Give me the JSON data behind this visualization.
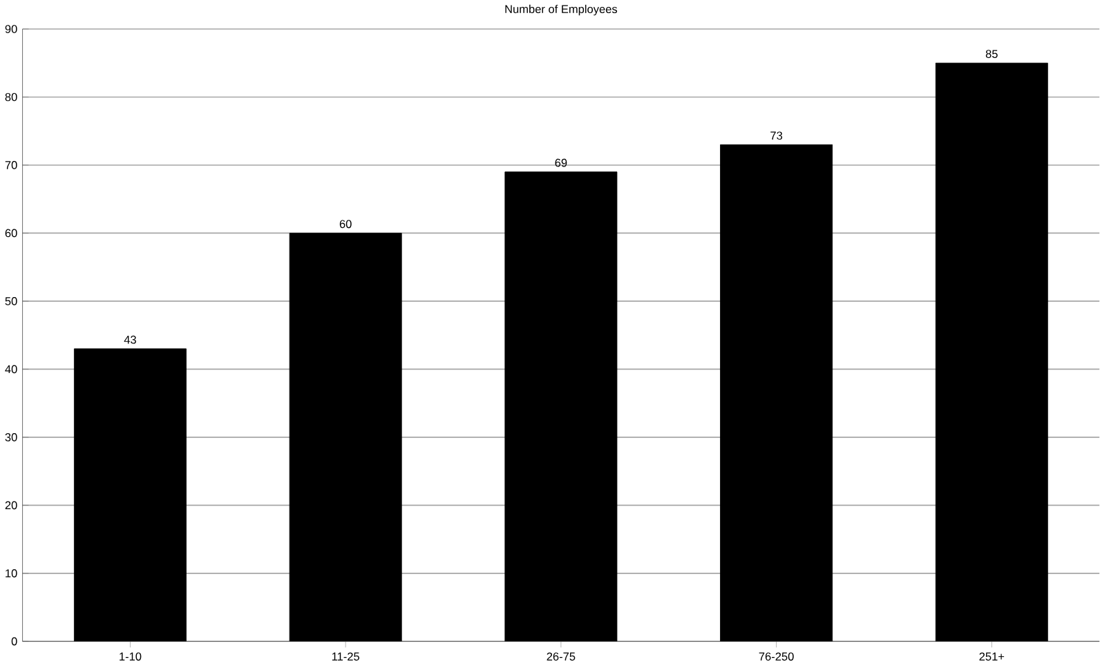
{
  "chart_data": {
    "type": "bar",
    "title": "Number of Employees",
    "categories": [
      "1-10",
      "11-25",
      "26-75",
      "76-250",
      "251+"
    ],
    "values": [
      43,
      60,
      69,
      73,
      85
    ],
    "color": "#000000",
    "ylim": [
      0,
      90
    ],
    "yticks": [
      0,
      10,
      20,
      30,
      40,
      50,
      60,
      70,
      80,
      90
    ],
    "grid": "y",
    "data_labels": true
  }
}
